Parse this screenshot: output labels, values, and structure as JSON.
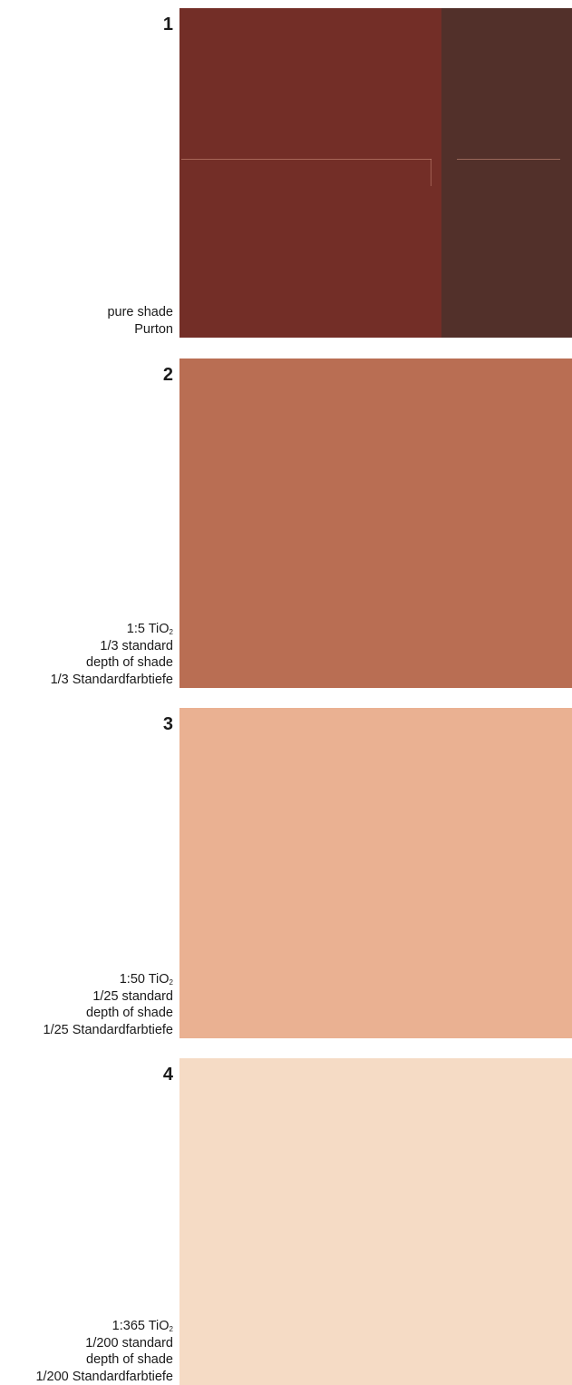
{
  "swatches": [
    {
      "number": "1",
      "ratio_prefix": "",
      "ratio_sub": "",
      "lines": [
        "pure shade",
        "Purton"
      ],
      "colors": {
        "main": "#732e27",
        "side": "#52302a"
      }
    },
    {
      "number": "2",
      "ratio_prefix": "1:5 TiO",
      "ratio_sub": "2",
      "lines": [
        "1/3 standard",
        "depth of shade",
        "1/3 Standardfarbtiefe"
      ],
      "colors": {
        "main": "#b96e53"
      }
    },
    {
      "number": "3",
      "ratio_prefix": "1:50 TiO",
      "ratio_sub": "2",
      "lines": [
        "1/25 standard",
        "depth of shade",
        "1/25 Standardfarbtiefe"
      ],
      "colors": {
        "main": "#eab192"
      }
    },
    {
      "number": "4",
      "ratio_prefix": "1:365 TiO",
      "ratio_sub": "2",
      "lines": [
        "1/200 standard",
        "depth of shade",
        "1/200 Standardfarbtiefe"
      ],
      "colors": {
        "main": "#f5dbc5"
      }
    }
  ]
}
